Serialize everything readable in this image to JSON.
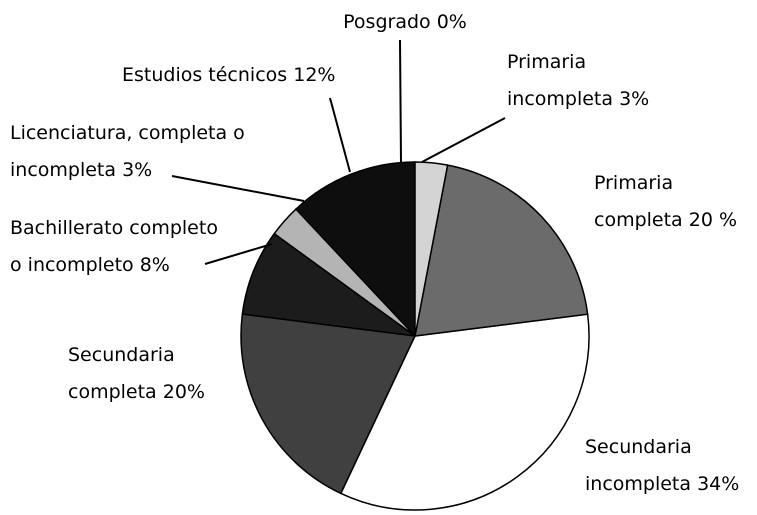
{
  "chart_data": {
    "type": "pie",
    "categories": [
      "Primaria incompleta",
      "Primaria completa",
      "Secundaria incompleta",
      "Secundaria completa",
      "Bachillerato completo o incompleto",
      "Licenciatura, completa o incompleta",
      "Estudios técnicos",
      "Posgrado"
    ],
    "values": [
      3,
      20,
      34,
      20,
      8,
      3,
      12,
      0
    ],
    "value_labels": [
      "3%",
      "20 %",
      "34%",
      "20%",
      "8%",
      "3%",
      "12%",
      "0%"
    ],
    "colors": [
      "#d4d4d4",
      "#6b6b6b",
      "#ffffff",
      "#404040",
      "#1c1c1c",
      "#b4b4b4",
      "#0e0e0e",
      "#dddddd"
    ]
  }
}
